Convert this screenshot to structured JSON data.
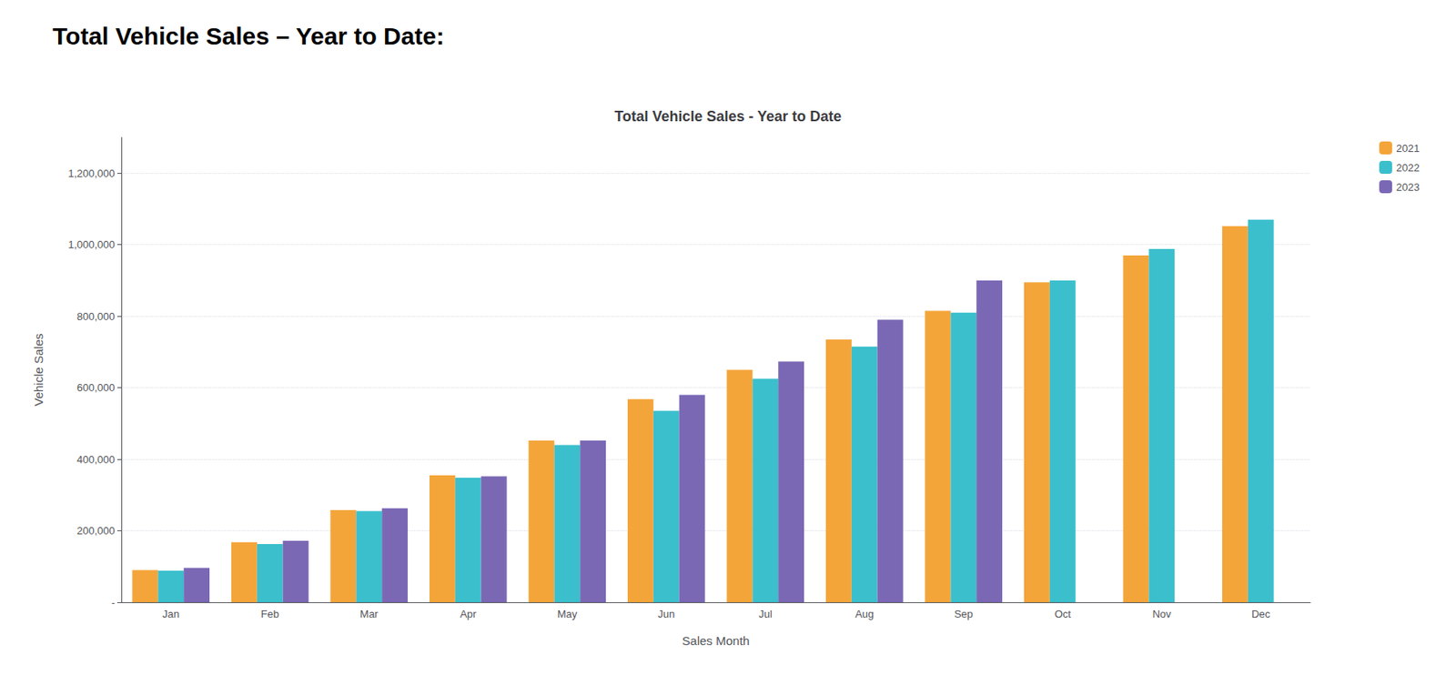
{
  "chart_data": {
    "type": "bar",
    "title": "Total Vehicle Sales – Year to Date:",
    "subtitle": "Total Vehicle Sales - Year to Date",
    "x_label": "Sales Month",
    "y_label": "Vehicle Sales",
    "categories": [
      "Jan",
      "Feb",
      "Mar",
      "Apr",
      "May",
      "Jun",
      "Jul",
      "Aug",
      "Sep",
      "Oct",
      "Nov",
      "Dec"
    ],
    "series": [
      {
        "name": "2021",
        "color": "#F4A53A",
        "values": [
          90000,
          168000,
          258000,
          355000,
          452000,
          568000,
          650000,
          735000,
          815000,
          895000,
          970000,
          1052000
        ]
      },
      {
        "name": "2022",
        "color": "#3BBFCC",
        "values": [
          88000,
          163000,
          255000,
          348000,
          440000,
          535000,
          625000,
          715000,
          810000,
          900000,
          988000,
          1070000
        ]
      },
      {
        "name": "2023",
        "color": "#7B68B5",
        "values": [
          96000,
          172000,
          263000,
          352000,
          452000,
          580000,
          673000,
          790000,
          900000,
          null,
          null,
          null
        ]
      }
    ],
    "ylim": [
      0,
      1300000
    ],
    "yticks": [
      {
        "value": 0,
        "label": "-"
      },
      {
        "value": 200000,
        "label": "200,000"
      },
      {
        "value": 400000,
        "label": "400,000"
      },
      {
        "value": 600000,
        "label": "600,000"
      },
      {
        "value": 800000,
        "label": "800,000"
      },
      {
        "value": 1000000,
        "label": "1,000,000"
      },
      {
        "value": 1200000,
        "label": "1,200,000"
      }
    ],
    "grid": true,
    "legend": "upper right"
  }
}
